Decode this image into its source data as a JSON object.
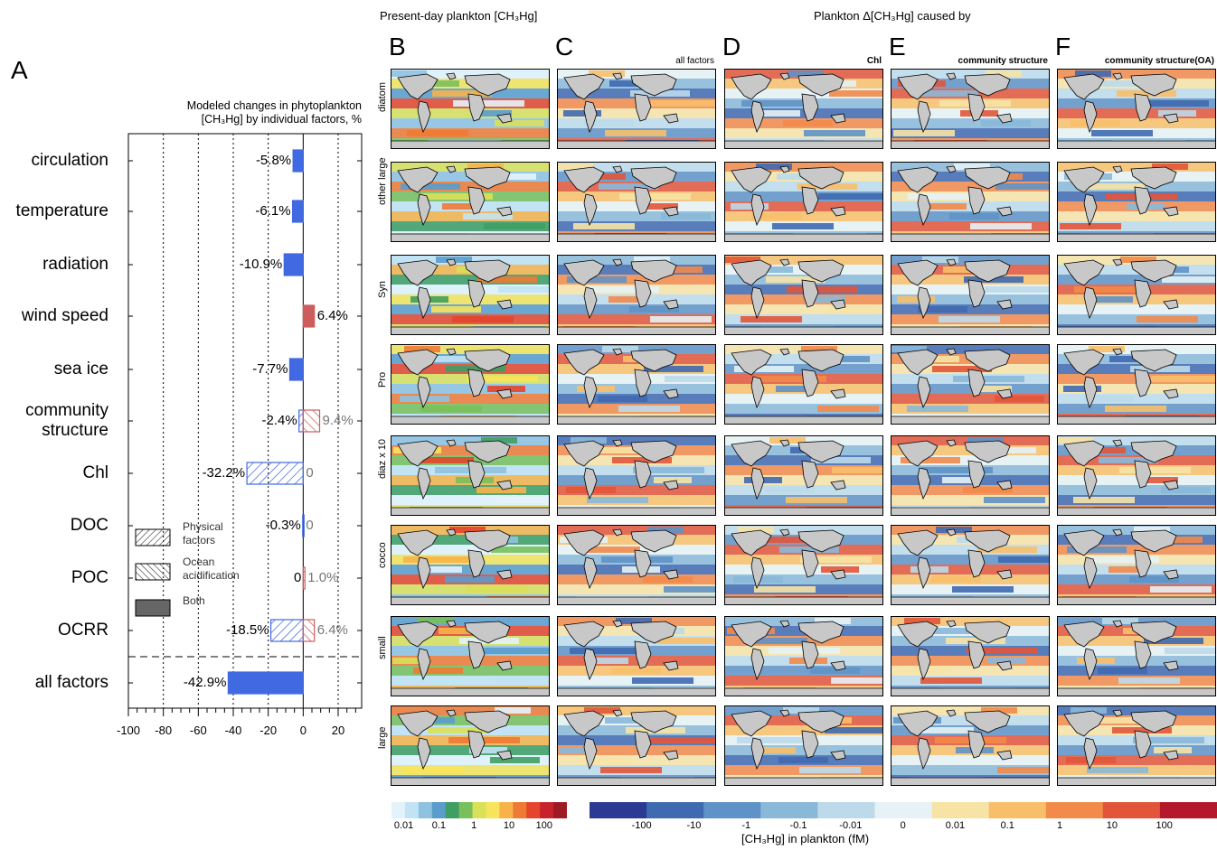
{
  "panel_a": {
    "letter": "A",
    "title_line1": "Modeled changes in phytoplankton",
    "title_line2": "[CH₃Hg] by individual factors, %"
  },
  "legend": {
    "physical": "Physical factors",
    "ocean_acid": "Ocean acidification",
    "both": "Both"
  },
  "header_present": "Present-day plankton [CH₃Hg]",
  "header_delta": "Plankton Δ[CH₃Hg] caused by",
  "columns": [
    {
      "letter": "B",
      "subtitle": ""
    },
    {
      "letter": "C",
      "subtitle": "all factors"
    },
    {
      "letter": "D",
      "subtitle": "Chl"
    },
    {
      "letter": "E",
      "subtitle": "community structure"
    },
    {
      "letter": "F",
      "subtitle": "community structure(OA)"
    }
  ],
  "rows": [
    "diatom",
    "other large",
    "Syn",
    "Pro",
    "diaz x 10",
    "cocco",
    "small",
    "large"
  ],
  "colorbar_present": {
    "ticks": [
      "0.01",
      "0.1",
      "1",
      "10",
      "100"
    ],
    "colors": [
      "#e4f3fb",
      "#c2e3f3",
      "#8fc2e0",
      "#5b9ccd",
      "#3f9e63",
      "#79c05c",
      "#d9e05a",
      "#f6e45b",
      "#f7b34a",
      "#ee7a34",
      "#e4452c",
      "#c8222a",
      "#9e1a23"
    ]
  },
  "colorbar_delta": {
    "ticks": [
      "-100",
      "-10",
      "-1",
      "-0.1",
      "-0.01",
      "0",
      "0.01",
      "0.1",
      "1",
      "10",
      "100"
    ],
    "colors": [
      "#2b3a93",
      "#3f69b0",
      "#5f92c6",
      "#8ab8d9",
      "#bcdaea",
      "#e6f2f5",
      "#f7e3a6",
      "#f8bf6a",
      "#f28a4a",
      "#e2553a",
      "#b5182a"
    ],
    "label": "[CH₃Hg] in plankton (fM)"
  },
  "chart_data": {
    "type": "bar",
    "orientation": "horizontal",
    "categories": [
      "circulation",
      "temperature",
      "radiation",
      "wind speed",
      "sea ice",
      "community structure",
      "Chl",
      "DOC",
      "POC",
      "OCRR",
      "all factors"
    ],
    "series": [
      {
        "name": "Physical factors",
        "values": [
          null,
          null,
          null,
          null,
          null,
          -2.4,
          -32.2,
          -0.3,
          0,
          -18.5,
          null
        ]
      },
      {
        "name": "Ocean acidification",
        "values": [
          null,
          null,
          null,
          null,
          null,
          9.4,
          0,
          0,
          1.0,
          6.4,
          null
        ]
      },
      {
        "name": "Both",
        "values": [
          -5.8,
          -6.1,
          -10.9,
          6.4,
          -7.7,
          null,
          null,
          null,
          null,
          null,
          -42.9
        ]
      }
    ],
    "value_labels": {
      "physical": [
        "",
        "",
        "",
        "",
        "",
        "-2.4%",
        "-32.2%",
        "-0.3%",
        "0",
        "-18.5%",
        ""
      ],
      "ocean_acid": [
        "",
        "",
        "",
        "",
        "",
        "9.4%",
        "0",
        "0",
        "1.0%",
        "6.4%",
        ""
      ],
      "both": [
        "-5.8%",
        "-6.1%",
        "-10.9%",
        "6.4%",
        "-7.7%",
        "",
        "",
        "",
        "",
        "",
        "-42.9%"
      ]
    },
    "category_labels": [
      [
        "circulation"
      ],
      [
        "temperature"
      ],
      [
        "radiation"
      ],
      [
        "wind speed"
      ],
      [
        "sea ice"
      ],
      [
        "community",
        "structure"
      ],
      [
        "Chl"
      ],
      [
        "DOC"
      ],
      [
        "POC"
      ],
      [
        "OCRR"
      ],
      [
        "all factors"
      ]
    ],
    "xlim": [
      -100,
      30
    ],
    "xticks": [
      -100,
      -80,
      -60,
      -40,
      -20,
      0,
      20
    ],
    "xtick_labels": [
      "-100",
      "-80",
      "-60",
      "-40",
      "-20",
      "0",
      "20"
    ],
    "gridlines_x": [
      -80,
      -60,
      -40,
      -20,
      20
    ],
    "colors": {
      "negative": "#4169e1",
      "positive": "#cd5c5c"
    }
  }
}
